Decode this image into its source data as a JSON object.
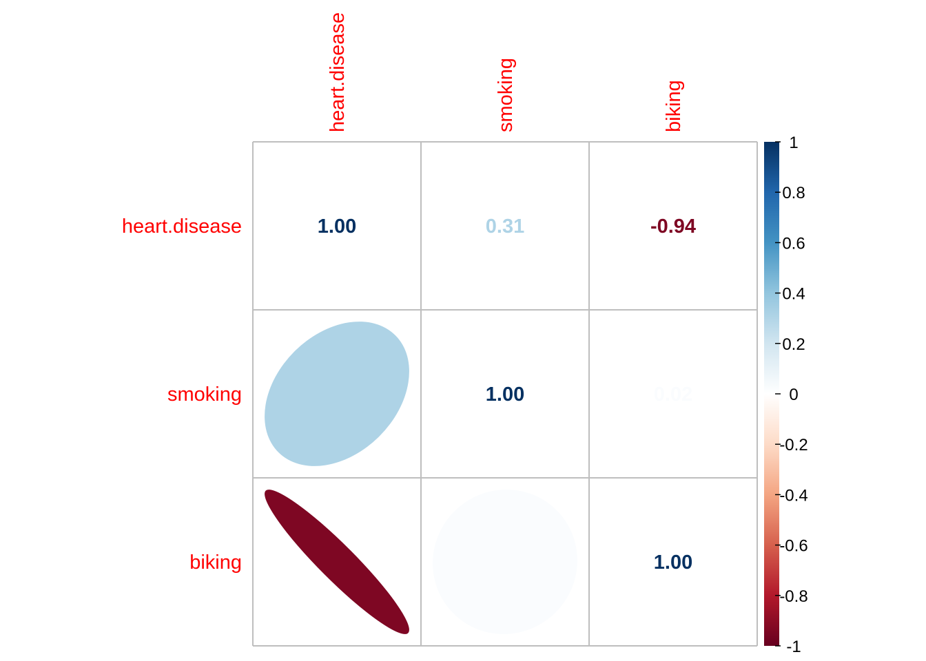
{
  "chart_data": {
    "type": "heatmap",
    "title": "",
    "variables": [
      "heart.disease",
      "smoking",
      "biking"
    ],
    "matrix": [
      [
        1.0,
        0.31,
        -0.94
      ],
      [
        0.31,
        1.0,
        0.02
      ],
      [
        -0.94,
        0.02,
        1.0
      ]
    ],
    "upper": "number",
    "lower": "ellipse",
    "value_labels": [
      [
        "1.00",
        "0.31",
        "-0.94"
      ],
      [
        "0.31",
        "1.00",
        "0.02"
      ],
      [
        "-0.94",
        "0.02",
        "1.00"
      ]
    ],
    "colorbar": {
      "range": [
        -1,
        1
      ],
      "ticks": [
        "-1",
        "-0.8",
        "-0.6",
        "-0.4",
        "-0.2",
        "0",
        "0.2",
        "0.4",
        "0.6",
        "0.8",
        "1"
      ],
      "palette": [
        "#67001F",
        "#B2182B",
        "#D6604D",
        "#F4A582",
        "#FDDBC7",
        "#FFFFFF",
        "#D1E5F0",
        "#92C5DE",
        "#4393C3",
        "#2166AC",
        "#053061"
      ]
    },
    "label_color": "#FF0000",
    "grid_color": "#BEBEBE"
  }
}
